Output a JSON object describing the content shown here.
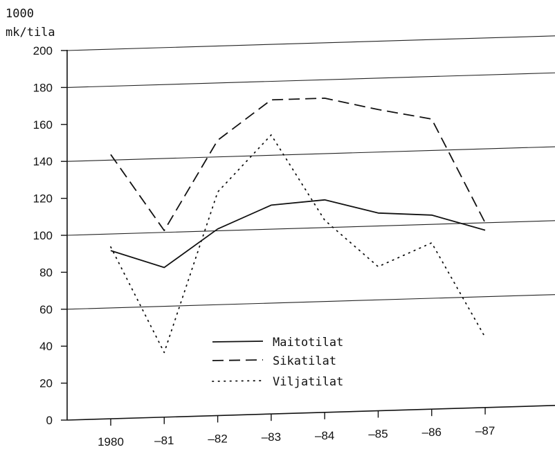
{
  "chart_data": {
    "type": "line",
    "ylabel_lines": [
      "1000",
      "mk/tila"
    ],
    "categories": [
      "1980",
      "–81",
      "–82",
      "–83",
      "–84",
      "–85",
      "–86",
      "–87"
    ],
    "ylim": [
      0,
      200
    ],
    "yticks": [
      0,
      20,
      40,
      60,
      80,
      100,
      120,
      140,
      160,
      180,
      200
    ],
    "ytick_labels": [
      "0",
      "20",
      "40",
      "60",
      "80",
      "100",
      "120",
      "140",
      "160",
      "180",
      "200"
    ],
    "grid_y": [
      60,
      100,
      140,
      180,
      200
    ],
    "legend_position": "lower-center",
    "series": [
      {
        "name": "Maitotilat",
        "style": "solid",
        "values": [
          91,
          81,
          101,
          113,
          115,
          107,
          105,
          96
        ]
      },
      {
        "name": "Sikatilat",
        "style": "dashed",
        "values": [
          143,
          101,
          149,
          170,
          170,
          163,
          157,
          100
        ]
      },
      {
        "name": "Viljatilat",
        "style": "dotted",
        "values": [
          93,
          35,
          121,
          151,
          104,
          78,
          90,
          38
        ]
      }
    ]
  }
}
